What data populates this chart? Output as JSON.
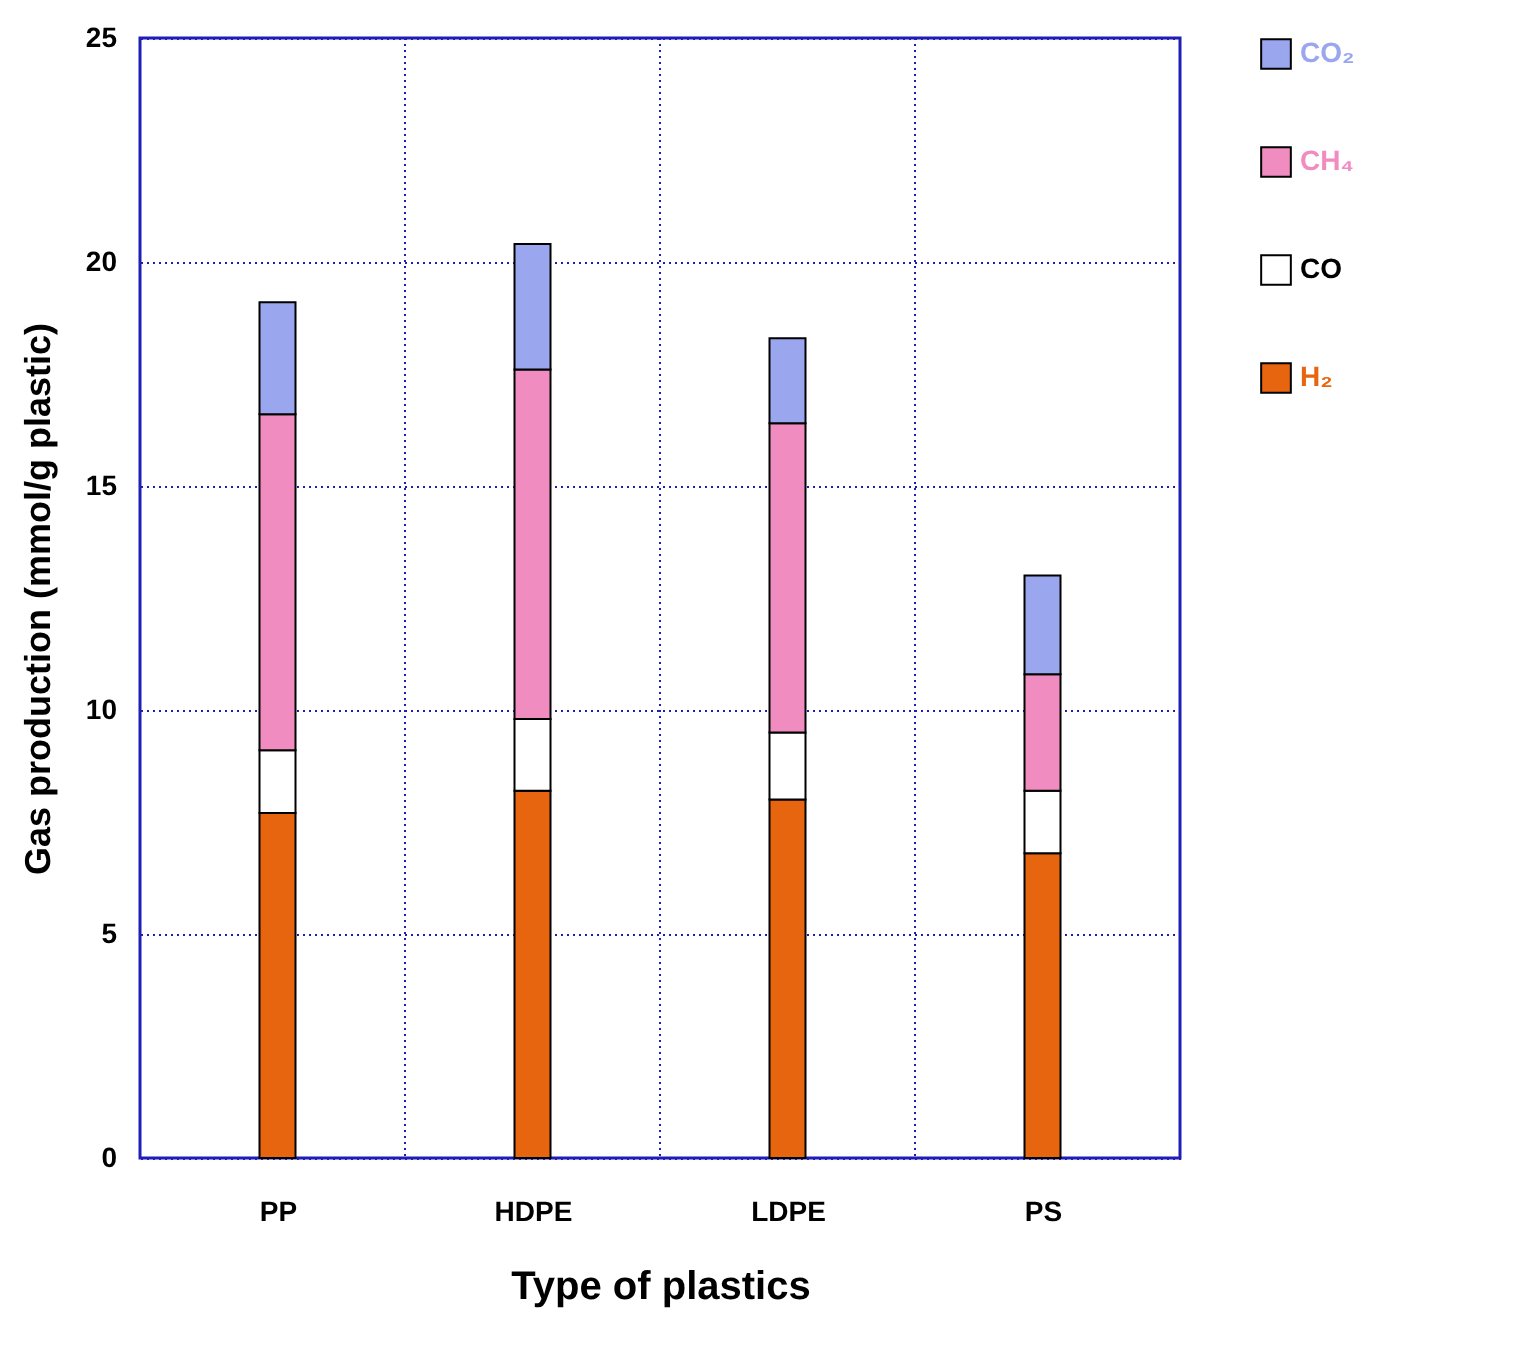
{
  "chart_data": {
    "type": "bar",
    "stacked": true,
    "xlabel": "Type of plastics",
    "ylabel": "Gas production (mmol/g plastic)",
    "categories": [
      "PP",
      "HDPE",
      "LDPE",
      "PS"
    ],
    "series": [
      {
        "name": "H₂",
        "color": "#e8650f",
        "values": [
          7.7,
          8.2,
          8.0,
          6.8
        ]
      },
      {
        "name": "CO",
        "color": "#ffffff",
        "values": [
          1.4,
          1.6,
          1.5,
          1.4
        ]
      },
      {
        "name": "CH₄",
        "color": "#f08cc0",
        "values": [
          7.5,
          7.8,
          6.9,
          2.6
        ]
      },
      {
        "name": "CO₂",
        "color": "#9aa6ee",
        "values": [
          2.5,
          2.8,
          1.9,
          2.2
        ]
      }
    ],
    "ylim": [
      0,
      25
    ],
    "yticks": [
      0,
      5,
      10,
      15,
      20,
      25
    ],
    "grid": true,
    "legend": "top right"
  }
}
